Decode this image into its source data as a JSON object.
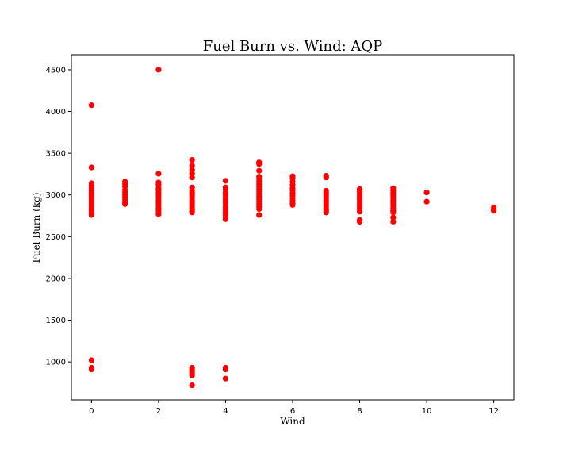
{
  "chart_data": {
    "type": "scatter",
    "title": "Fuel Burn vs. Wind: AQP",
    "xlabel": "Wind",
    "ylabel": "Fuel Burn (kg)",
    "xlim": [
      -0.6,
      12.6
    ],
    "ylim": [
      545,
      4680
    ],
    "x_ticks": [
      0,
      2,
      4,
      6,
      8,
      10,
      12
    ],
    "y_ticks": [
      1000,
      1500,
      2000,
      2500,
      3000,
      3500,
      4000,
      4500
    ],
    "grid": false,
    "legend": "none",
    "marker_color": "#ff0000",
    "series": [
      {
        "points": [
          [
            0,
            4075
          ],
          [
            0,
            3330
          ],
          [
            0,
            3140
          ],
          [
            0,
            3110
          ],
          [
            0,
            3080
          ],
          [
            0,
            3050
          ],
          [
            0,
            3020
          ],
          [
            0,
            2990
          ],
          [
            0,
            2960
          ],
          [
            0,
            2930
          ],
          [
            0,
            2900
          ],
          [
            0,
            2870
          ],
          [
            0,
            2840
          ],
          [
            0,
            2810
          ],
          [
            0,
            2780
          ],
          [
            0,
            2760
          ],
          [
            0,
            1020
          ],
          [
            0,
            930
          ],
          [
            0,
            910
          ],
          [
            1,
            3160
          ],
          [
            1,
            3130
          ],
          [
            1,
            3100
          ],
          [
            1,
            3060
          ],
          [
            1,
            3030
          ],
          [
            1,
            3000
          ],
          [
            1,
            2970
          ],
          [
            1,
            2940
          ],
          [
            1,
            2910
          ],
          [
            1,
            2890
          ],
          [
            2,
            4500
          ],
          [
            2,
            3255
          ],
          [
            2,
            3150
          ],
          [
            2,
            3120
          ],
          [
            2,
            3080
          ],
          [
            2,
            3050
          ],
          [
            2,
            3020
          ],
          [
            2,
            2990
          ],
          [
            2,
            2960
          ],
          [
            2,
            2930
          ],
          [
            2,
            2900
          ],
          [
            2,
            2870
          ],
          [
            2,
            2840
          ],
          [
            2,
            2810
          ],
          [
            2,
            2780
          ],
          [
            2,
            2770
          ],
          [
            3,
            3420
          ],
          [
            3,
            3350
          ],
          [
            3,
            3300
          ],
          [
            3,
            3260
          ],
          [
            3,
            3210
          ],
          [
            3,
            3090
          ],
          [
            3,
            3050
          ],
          [
            3,
            3020
          ],
          [
            3,
            2990
          ],
          [
            3,
            2960
          ],
          [
            3,
            2930
          ],
          [
            3,
            2900
          ],
          [
            3,
            2870
          ],
          [
            3,
            2840
          ],
          [
            3,
            2810
          ],
          [
            3,
            2790
          ],
          [
            3,
            930
          ],
          [
            3,
            900
          ],
          [
            3,
            870
          ],
          [
            3,
            840
          ],
          [
            3,
            720
          ],
          [
            4,
            3170
          ],
          [
            4,
            3090
          ],
          [
            4,
            3060
          ],
          [
            4,
            3030
          ],
          [
            4,
            3000
          ],
          [
            4,
            2970
          ],
          [
            4,
            2940
          ],
          [
            4,
            2910
          ],
          [
            4,
            2880
          ],
          [
            4,
            2850
          ],
          [
            4,
            2820
          ],
          [
            4,
            2790
          ],
          [
            4,
            2760
          ],
          [
            4,
            2730
          ],
          [
            4,
            2710
          ],
          [
            4,
            930
          ],
          [
            4,
            910
          ],
          [
            4,
            800
          ],
          [
            5,
            3390
          ],
          [
            5,
            3370
          ],
          [
            5,
            3290
          ],
          [
            5,
            3220
          ],
          [
            5,
            3190
          ],
          [
            5,
            3160
          ],
          [
            5,
            3130
          ],
          [
            5,
            3100
          ],
          [
            5,
            3070
          ],
          [
            5,
            3040
          ],
          [
            5,
            3010
          ],
          [
            5,
            2980
          ],
          [
            5,
            2950
          ],
          [
            5,
            2920
          ],
          [
            5,
            2890
          ],
          [
            5,
            2860
          ],
          [
            5,
            2830
          ],
          [
            5,
            2760
          ],
          [
            6,
            3225
          ],
          [
            6,
            3200
          ],
          [
            6,
            3160
          ],
          [
            6,
            3120
          ],
          [
            6,
            3080
          ],
          [
            6,
            3050
          ],
          [
            6,
            3020
          ],
          [
            6,
            2990
          ],
          [
            6,
            2960
          ],
          [
            6,
            2930
          ],
          [
            6,
            2900
          ],
          [
            6,
            2880
          ],
          [
            7,
            3230
          ],
          [
            7,
            3210
          ],
          [
            7,
            3050
          ],
          [
            7,
            3020
          ],
          [
            7,
            2990
          ],
          [
            7,
            2960
          ],
          [
            7,
            2930
          ],
          [
            7,
            2900
          ],
          [
            7,
            2870
          ],
          [
            7,
            2840
          ],
          [
            7,
            2810
          ],
          [
            7,
            2790
          ],
          [
            8,
            3070
          ],
          [
            8,
            3040
          ],
          [
            8,
            3010
          ],
          [
            8,
            2980
          ],
          [
            8,
            2950
          ],
          [
            8,
            2920
          ],
          [
            8,
            2890
          ],
          [
            8,
            2860
          ],
          [
            8,
            2830
          ],
          [
            8,
            2800
          ],
          [
            8,
            2700
          ],
          [
            8,
            2680
          ],
          [
            9,
            3080
          ],
          [
            9,
            3050
          ],
          [
            9,
            3020
          ],
          [
            9,
            2990
          ],
          [
            9,
            2960
          ],
          [
            9,
            2930
          ],
          [
            9,
            2900
          ],
          [
            9,
            2870
          ],
          [
            9,
            2840
          ],
          [
            9,
            2810
          ],
          [
            9,
            2790
          ],
          [
            9,
            2730
          ],
          [
            9,
            2680
          ],
          [
            10,
            3030
          ],
          [
            10,
            2920
          ],
          [
            12,
            2850
          ],
          [
            12,
            2830
          ],
          [
            12,
            2810
          ]
        ]
      }
    ]
  }
}
